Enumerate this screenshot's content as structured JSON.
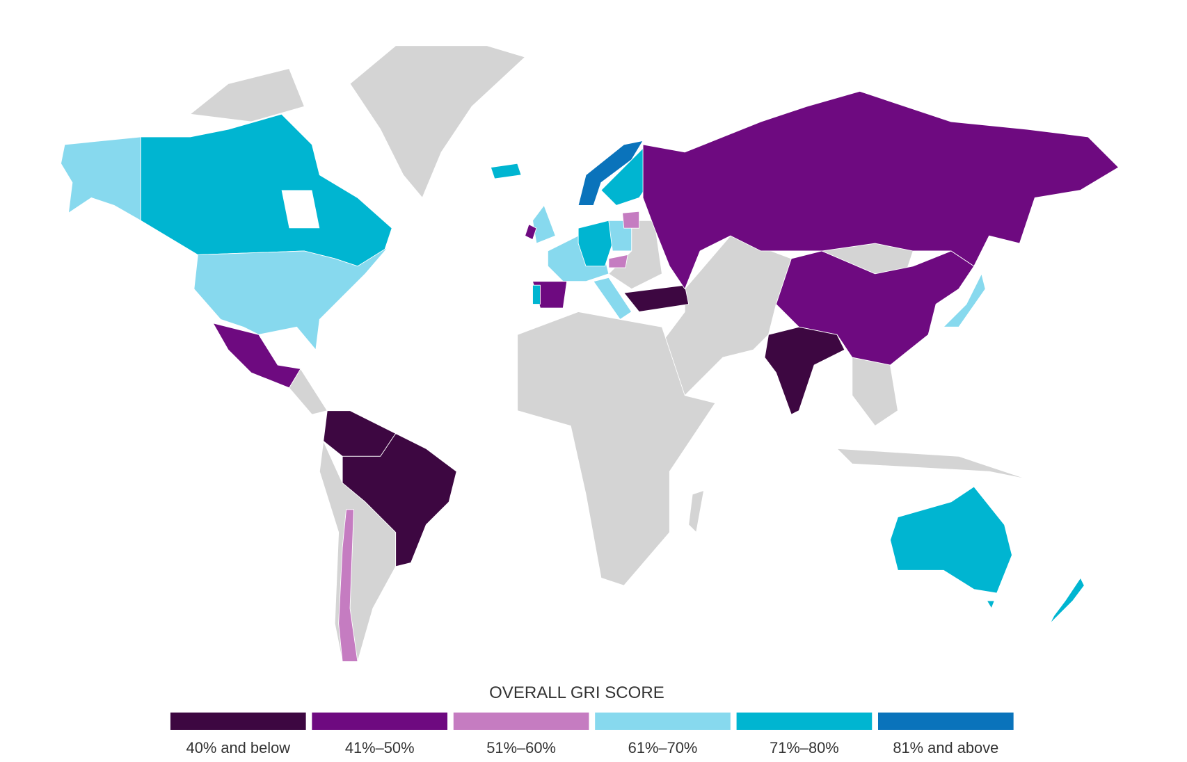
{
  "legend": {
    "title": "OVERALL GRI SCORE",
    "items": [
      {
        "label": "40% and below",
        "color": "#3d0741"
      },
      {
        "label": "41%–50%",
        "color": "#6e0a80"
      },
      {
        "label": "51%–60%",
        "color": "#c57cc1"
      },
      {
        "label": "61%–70%",
        "color": "#87d9ee"
      },
      {
        "label": "71%–80%",
        "color": "#00b5d1"
      },
      {
        "label": "81% and above",
        "color": "#0a73bb"
      }
    ]
  }
}
